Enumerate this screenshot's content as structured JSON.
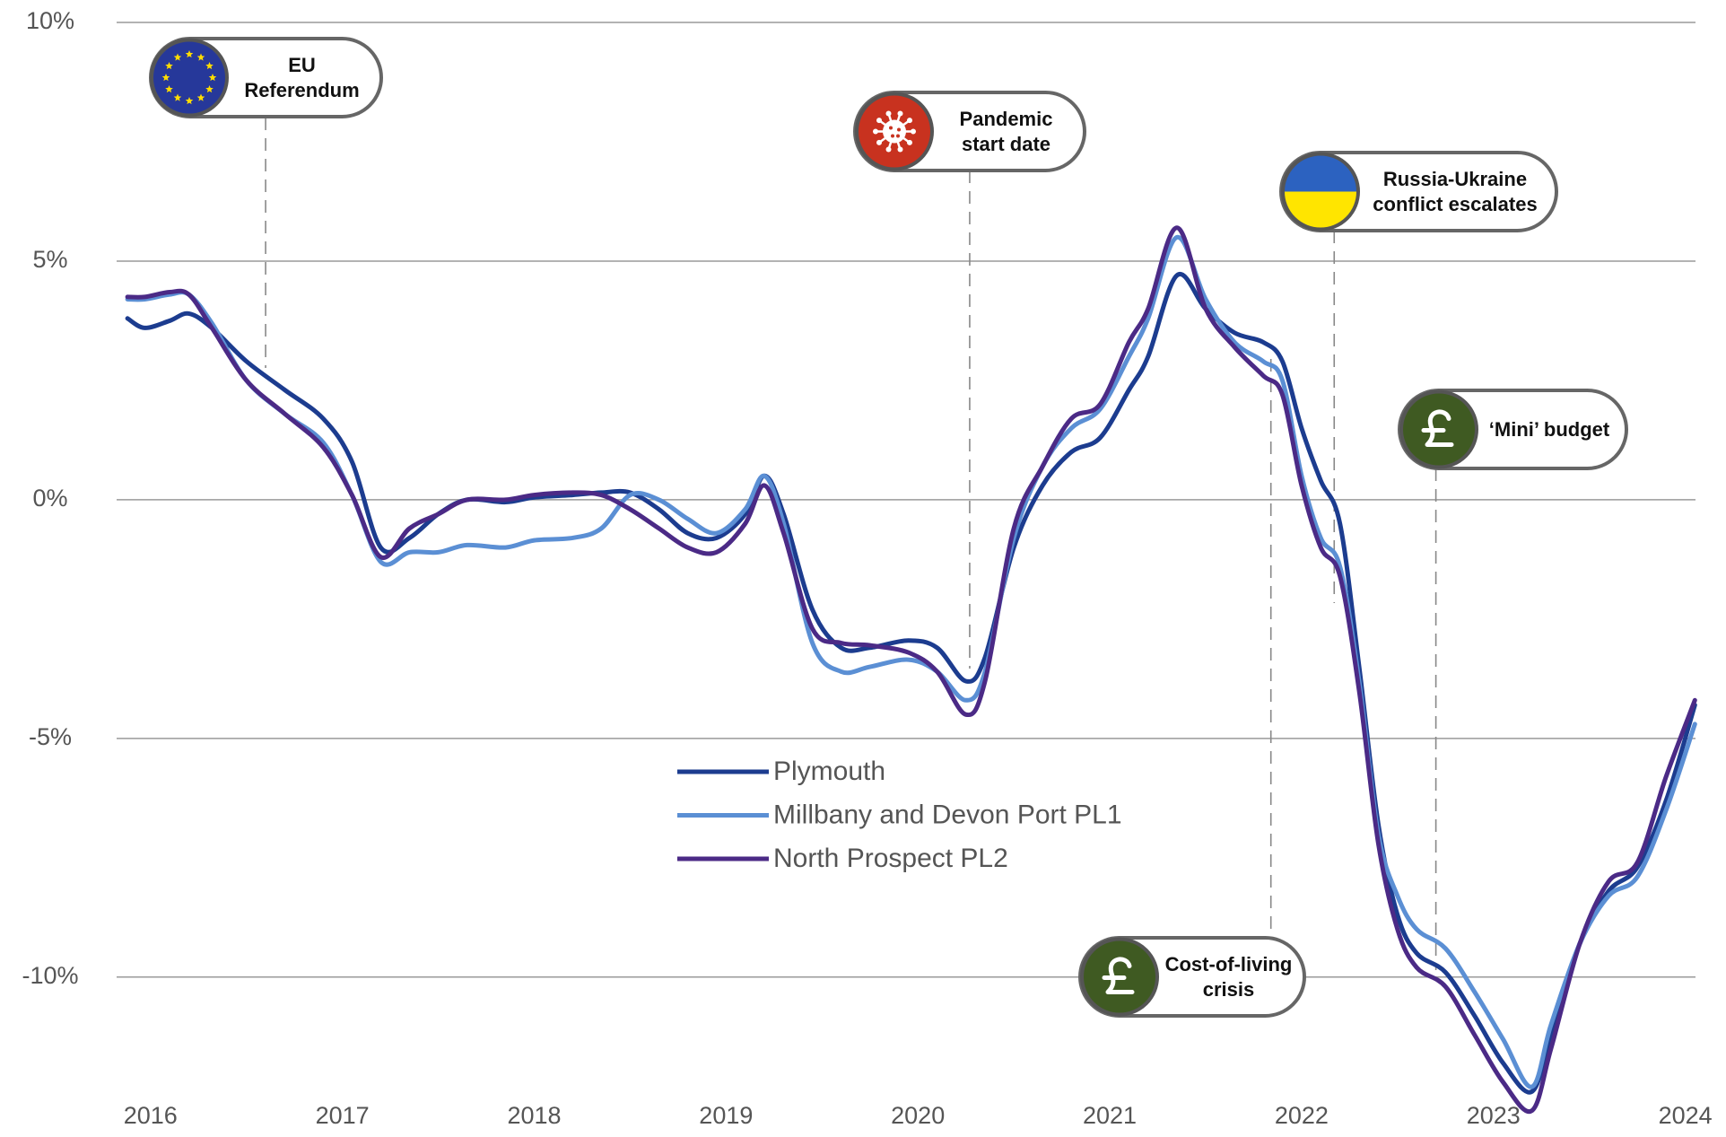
{
  "chart_data": {
    "type": "line",
    "x": [
      2015.88,
      2015.97,
      2016.1,
      2016.2,
      2016.32,
      2016.5,
      2016.7,
      2016.9,
      2017.05,
      2017.2,
      2017.35,
      2017.5,
      2017.65,
      2017.85,
      2018.0,
      2018.2,
      2018.35,
      2018.5,
      2018.65,
      2018.8,
      2018.95,
      2019.1,
      2019.2,
      2019.3,
      2019.45,
      2019.6,
      2019.75,
      2019.95,
      2020.1,
      2020.25,
      2020.35,
      2020.5,
      2020.65,
      2020.8,
      2020.95,
      2021.1,
      2021.2,
      2021.35,
      2021.5,
      2021.65,
      2021.8,
      2021.9,
      2022.0,
      2022.1,
      2022.2,
      2022.3,
      2022.4,
      2022.5,
      2022.6,
      2022.75,
      2022.9,
      2023.05,
      2023.2,
      2023.3,
      2023.45,
      2023.6,
      2023.75,
      2023.9,
      2024.05
    ],
    "series": [
      {
        "name": "Plymouth",
        "color": "#1c3c8f",
        "values": [
          3.8,
          3.6,
          3.75,
          3.9,
          3.6,
          2.9,
          2.3,
          1.7,
          0.8,
          -1.0,
          -0.8,
          -0.3,
          0.0,
          -0.05,
          0.05,
          0.1,
          0.15,
          0.15,
          -0.2,
          -0.7,
          -0.8,
          -0.3,
          0.5,
          -0.3,
          -2.3,
          -3.1,
          -3.1,
          -2.95,
          -3.1,
          -3.8,
          -3.3,
          -1.0,
          0.3,
          1.0,
          1.3,
          2.3,
          3.0,
          4.7,
          4.0,
          3.5,
          3.3,
          2.9,
          1.5,
          0.4,
          -0.5,
          -3.5,
          -6.8,
          -8.7,
          -9.5,
          -9.9,
          -10.8,
          -11.8,
          -12.4,
          -11.2,
          -9.3,
          -8.2,
          -7.7,
          -6.3,
          -4.3
        ]
      },
      {
        "name": "Millbany and Devon Port PL1",
        "color": "#5b8fd4",
        "values": [
          4.2,
          4.2,
          4.3,
          4.3,
          3.7,
          2.5,
          1.8,
          1.2,
          0.1,
          -1.3,
          -1.1,
          -1.1,
          -0.95,
          -1.0,
          -0.85,
          -0.8,
          -0.6,
          0.1,
          0.0,
          -0.4,
          -0.7,
          -0.2,
          0.5,
          -0.5,
          -3.0,
          -3.6,
          -3.5,
          -3.35,
          -3.6,
          -4.2,
          -3.6,
          -0.8,
          0.7,
          1.5,
          1.9,
          3.0,
          3.8,
          5.5,
          4.2,
          3.3,
          2.9,
          2.5,
          0.5,
          -0.8,
          -1.4,
          -3.8,
          -7.0,
          -8.3,
          -9.0,
          -9.4,
          -10.3,
          -11.3,
          -12.3,
          -11.0,
          -9.3,
          -8.3,
          -7.9,
          -6.5,
          -4.7
        ]
      },
      {
        "name": "North Prospect PL2",
        "color": "#4b2a86",
        "values": [
          4.25,
          4.25,
          4.35,
          4.3,
          3.6,
          2.5,
          1.8,
          1.1,
          0.1,
          -1.2,
          -0.6,
          -0.3,
          0.0,
          0.0,
          0.1,
          0.15,
          0.1,
          -0.2,
          -0.6,
          -1.0,
          -1.1,
          -0.5,
          0.3,
          -0.7,
          -2.7,
          -3.0,
          -3.05,
          -3.2,
          -3.6,
          -4.5,
          -3.8,
          -0.6,
          0.7,
          1.7,
          2.0,
          3.3,
          4.0,
          5.7,
          4.0,
          3.2,
          2.6,
          2.2,
          0.3,
          -1.0,
          -1.6,
          -4.0,
          -7.2,
          -9.0,
          -9.8,
          -10.2,
          -11.2,
          -12.2,
          -12.8,
          -11.5,
          -9.3,
          -8.0,
          -7.6,
          -5.8,
          -4.2
        ]
      }
    ],
    "xlim": [
      2015.8,
      2024.1
    ],
    "xticks": [
      2016,
      2017,
      2018,
      2019,
      2020,
      2021,
      2022,
      2023,
      2024
    ],
    "ylim": [
      -13.2,
      10
    ],
    "yticks": [
      {
        "value": 10,
        "label": "10%"
      },
      {
        "value": 5,
        "label": "5%"
      },
      {
        "value": 0,
        "label": "0%"
      },
      {
        "value": -5,
        "label": "-5%"
      },
      {
        "value": -10,
        "label": "-10%"
      }
    ],
    "grid": true,
    "annotations": [
      {
        "text": "EU Referendum",
        "x": 2016.6
      },
      {
        "text": "Pandemic start date",
        "x": 2020.27
      },
      {
        "text": "Russia-Ukraine conflict escalates",
        "x": 2022.17
      },
      {
        "text": "‘Mini’ budget",
        "x": 2022.7
      },
      {
        "text": "Cost-of-living crisis",
        "x": 2021.84
      }
    ]
  }
}
